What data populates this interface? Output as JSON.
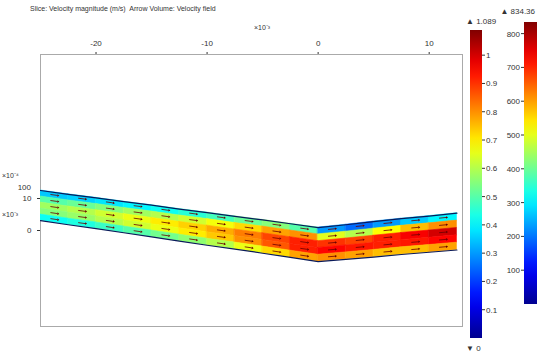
{
  "chart_data": [
    {
      "type": "field",
      "title": "Slice: Velocity magnitude (m/s)  Arrow Volume: Velocity field",
      "xlim": [
        -25,
        13
      ],
      "xticks": [
        -20,
        -10,
        0,
        10
      ],
      "x_multiplier": "×10⁻³",
      "ylim": [
        -30,
        55
      ],
      "yticks": [
        0,
        10
      ],
      "y_multiplier": "×10⁻³",
      "z_axis": {
        "multiplier": "×10⁻⁴",
        "ticks": [
          100
        ]
      },
      "channel": {
        "x": [
          -25,
          -22.5,
          -20,
          -17.5,
          -15,
          -12.5,
          -10,
          -7.5,
          -5,
          -2.5,
          0,
          2.5,
          5,
          7.5,
          10,
          12.5
        ],
        "y_top": [
          12.5,
          11.3,
          10.2,
          9.0,
          7.9,
          6.7,
          5.6,
          4.4,
          3.3,
          2.1,
          0.9,
          1.8,
          2.8,
          3.7,
          4.5,
          5.4
        ],
        "y_bottom": [
          3.1,
          1.8,
          0.6,
          -0.7,
          -2.0,
          -3.3,
          -4.6,
          -5.8,
          -7.1,
          -8.4,
          -9.7,
          -9.0,
          -8.3,
          -7.5,
          -6.8,
          -6.1
        ]
      },
      "velocity": [
        [
          0.35,
          0.36,
          0.38,
          0.4,
          0.42,
          0.45,
          0.48,
          0.52,
          0.55,
          0.5,
          0.3,
          0.25,
          0.3,
          0.35,
          0.4
        ],
        [
          0.5,
          0.52,
          0.55,
          0.58,
          0.6,
          0.63,
          0.67,
          0.72,
          0.78,
          0.8,
          0.65,
          0.6,
          0.68,
          0.75,
          0.8
        ],
        [
          0.58,
          0.6,
          0.63,
          0.66,
          0.7,
          0.73,
          0.77,
          0.82,
          0.88,
          0.92,
          0.9,
          0.88,
          0.92,
          0.96,
          1.0
        ],
        [
          0.55,
          0.57,
          0.6,
          0.63,
          0.66,
          0.7,
          0.74,
          0.8,
          0.86,
          0.92,
          0.95,
          0.93,
          0.92,
          0.93,
          0.95
        ],
        [
          0.42,
          0.44,
          0.47,
          0.5,
          0.53,
          0.56,
          0.6,
          0.66,
          0.72,
          0.78,
          0.8,
          0.78,
          0.75,
          0.75,
          0.78
        ]
      ],
      "colorbar": {
        "range": [
          0,
          1.089
        ],
        "ticks": [
          0.1,
          0.2,
          0.3,
          0.4,
          0.5,
          0.6,
          0.7,
          0.8,
          0.9,
          1
        ],
        "max_label": "▲ 1.089",
        "min_label": "▼ 0"
      }
    },
    {
      "type": "colorbar",
      "colorbar": {
        "range": [
          0,
          834.36
        ],
        "ticks": [
          100,
          200,
          300,
          400,
          500,
          600,
          700,
          800
        ],
        "max_label": "▲ 834.36"
      }
    }
  ]
}
